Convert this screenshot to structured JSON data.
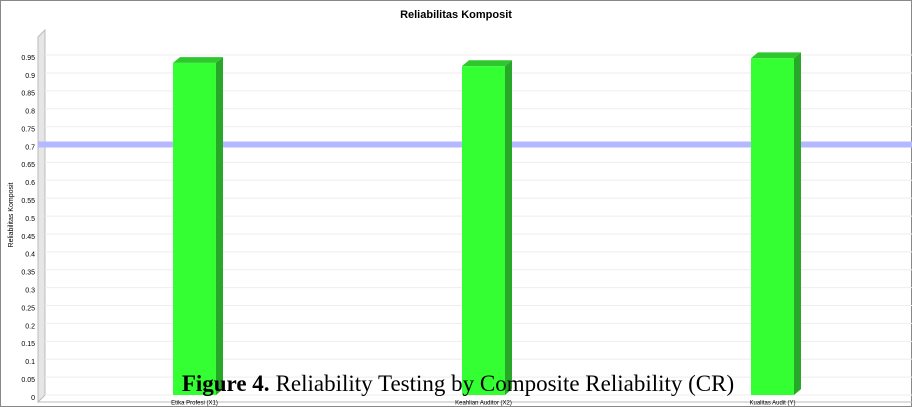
{
  "chart_data": {
    "type": "bar",
    "title": "Reliabilitas Komposit",
    "y_label": "Reliabilitas Komposit",
    "categories": [
      "Etika Profesi (X1)",
      "Keahlian Auditor (X2)",
      "Kualitas Audit (Y)"
    ],
    "values": [
      0.928,
      0.919,
      0.941
    ],
    "color": "#33ff33",
    "reference_line": {
      "value": 0.7,
      "color": "#b3b8ff"
    },
    "ylim": [
      0,
      1.02
    ],
    "yticks": [
      0,
      0.05,
      0.1,
      0.15,
      0.2,
      0.25,
      0.3,
      0.35,
      0.4,
      0.45,
      0.5,
      0.55,
      0.6,
      0.65,
      0.7,
      0.75,
      0.8,
      0.85,
      0.9,
      0.95
    ],
    "grid": true
  },
  "caption": {
    "label": "Figure 4.",
    "text": "Reliability Testing by Composite Reliability (CR)"
  }
}
